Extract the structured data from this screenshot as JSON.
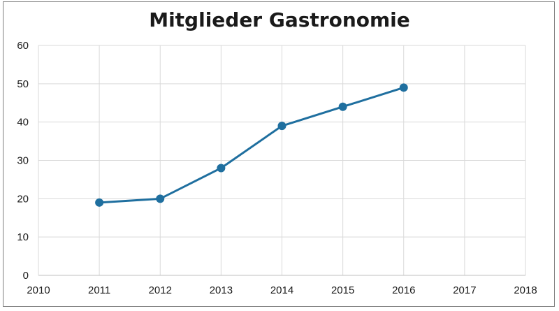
{
  "chart_data": {
    "type": "line",
    "title": "Mitglieder Gastronomie",
    "xlabel": "",
    "ylabel": "",
    "xlim": [
      2010,
      2018
    ],
    "ylim": [
      0,
      60
    ],
    "x_ticks": [
      2010,
      2011,
      2012,
      2013,
      2014,
      2015,
      2016,
      2017,
      2018
    ],
    "y_ticks": [
      0,
      10,
      20,
      30,
      40,
      50,
      60
    ],
    "grid": true,
    "legend": "none",
    "series": [
      {
        "color": "#1f6f9f",
        "x": [
          2011,
          2012,
          2013,
          2014,
          2015,
          2016
        ],
        "y": [
          19,
          20,
          28,
          39,
          44,
          49
        ]
      }
    ]
  }
}
